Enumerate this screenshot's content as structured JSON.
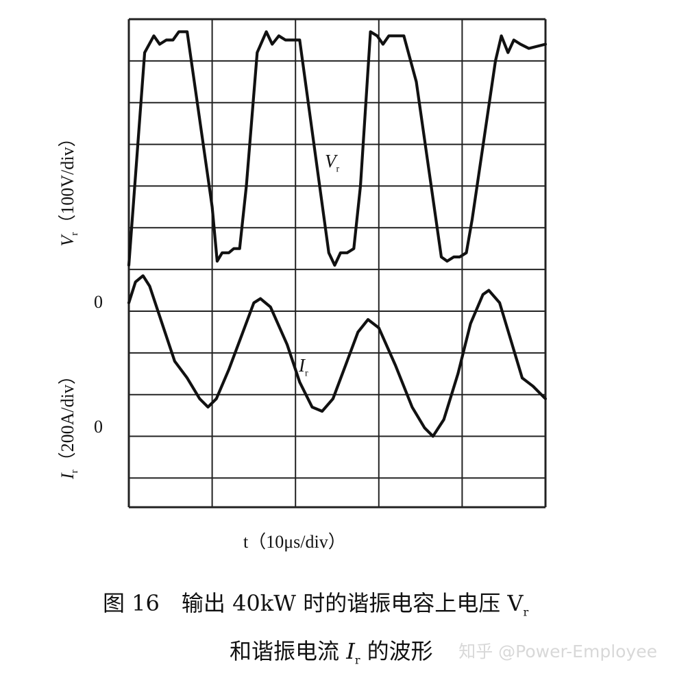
{
  "chart_data": {
    "type": "line",
    "grid": true,
    "x_divisions": 5,
    "y_divisions": 11,
    "x_axis_label": "t（10μs/div）",
    "series": [
      {
        "name": "Vr",
        "label_main": "V",
        "label_sub": "r",
        "axis_label_main": "V",
        "axis_label_sub": "r",
        "axis_label_rest": "（100V/div）",
        "zero_label": "0",
        "points": [
          [
            0.0,
            -5.9
          ],
          [
            0.19,
            -0.8
          ],
          [
            0.3,
            -0.4
          ],
          [
            0.37,
            -0.6
          ],
          [
            0.45,
            -0.5
          ],
          [
            0.53,
            -0.5
          ],
          [
            0.6,
            -0.3
          ],
          [
            0.7,
            -0.3
          ],
          [
            1.0,
            -4.5
          ],
          [
            1.06,
            -5.8
          ],
          [
            1.12,
            -5.6
          ],
          [
            1.2,
            -5.6
          ],
          [
            1.26,
            -5.5
          ],
          [
            1.33,
            -5.5
          ],
          [
            1.41,
            -4.0
          ],
          [
            1.54,
            -0.8
          ],
          [
            1.65,
            -0.3
          ],
          [
            1.72,
            -0.6
          ],
          [
            1.8,
            -0.4
          ],
          [
            1.88,
            -0.5
          ],
          [
            1.95,
            -0.5
          ],
          [
            2.05,
            -0.5
          ],
          [
            2.4,
            -5.6
          ],
          [
            2.47,
            -5.9
          ],
          [
            2.54,
            -5.6
          ],
          [
            2.62,
            -5.6
          ],
          [
            2.7,
            -5.5
          ],
          [
            2.78,
            -4.0
          ],
          [
            2.9,
            -0.3
          ],
          [
            2.98,
            -0.4
          ],
          [
            3.05,
            -0.6
          ],
          [
            3.12,
            -0.4
          ],
          [
            3.2,
            -0.4
          ],
          [
            3.3,
            -0.4
          ],
          [
            3.45,
            -1.5
          ],
          [
            3.75,
            -5.7
          ],
          [
            3.82,
            -5.8
          ],
          [
            3.9,
            -5.7
          ],
          [
            3.97,
            -5.7
          ],
          [
            4.05,
            -5.6
          ],
          [
            4.12,
            -4.8
          ],
          [
            4.4,
            -1.0
          ],
          [
            4.47,
            -0.4
          ],
          [
            4.55,
            -0.8
          ],
          [
            4.62,
            -0.5
          ],
          [
            4.7,
            -0.6
          ],
          [
            4.8,
            -0.7
          ],
          [
            5.0,
            -0.6
          ]
        ]
      },
      {
        "name": "Ir",
        "label_main": "I",
        "label_sub": "r",
        "axis_label_main": "I",
        "axis_label_sub": "r",
        "axis_label_rest": "（200A/div）",
        "zero_label": "0",
        "points": [
          [
            0.0,
            -6.8
          ],
          [
            0.08,
            -6.3
          ],
          [
            0.17,
            -6.15
          ],
          [
            0.25,
            -6.4
          ],
          [
            0.4,
            -7.3
          ],
          [
            0.55,
            -8.2
          ],
          [
            0.7,
            -8.6
          ],
          [
            0.85,
            -9.1
          ],
          [
            0.95,
            -9.3
          ],
          [
            1.05,
            -9.1
          ],
          [
            1.2,
            -8.4
          ],
          [
            1.35,
            -7.6
          ],
          [
            1.5,
            -6.8
          ],
          [
            1.58,
            -6.7
          ],
          [
            1.7,
            -6.9
          ],
          [
            1.9,
            -7.8
          ],
          [
            2.05,
            -8.7
          ],
          [
            2.2,
            -9.3
          ],
          [
            2.32,
            -9.4
          ],
          [
            2.45,
            -9.1
          ],
          [
            2.6,
            -8.3
          ],
          [
            2.75,
            -7.5
          ],
          [
            2.87,
            -7.2
          ],
          [
            3.0,
            -7.4
          ],
          [
            3.2,
            -8.3
          ],
          [
            3.4,
            -9.3
          ],
          [
            3.55,
            -9.8
          ],
          [
            3.65,
            -10.0
          ],
          [
            3.78,
            -9.6
          ],
          [
            3.95,
            -8.5
          ],
          [
            4.1,
            -7.3
          ],
          [
            4.25,
            -6.6
          ],
          [
            4.32,
            -6.5
          ],
          [
            4.45,
            -6.8
          ],
          [
            4.6,
            -7.8
          ],
          [
            4.72,
            -8.6
          ],
          [
            4.85,
            -8.8
          ],
          [
            5.0,
            -9.1
          ]
        ]
      }
    ]
  },
  "caption": {
    "line1": "图 16　输出 40kW 时的谐振电容上电压 V",
    "line1_sub": "r",
    "line2_a": "和谐振电流 ",
    "line2_i": "I",
    "line2_sub": "r",
    "line2_b": " 的波形"
  },
  "watermark": "知乎 @Power-Employee"
}
